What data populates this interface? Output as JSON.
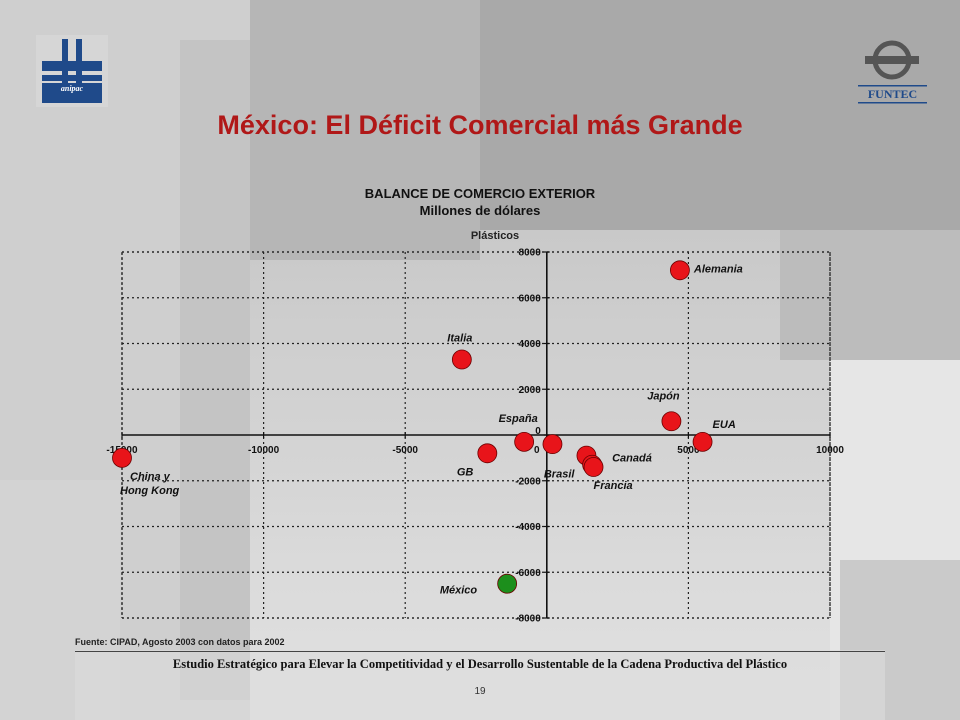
{
  "slide": {
    "title": "México: El Déficit Comercial más Grande",
    "source": "Fuente: CIPAD, Agosto 2003 con datos para 2002",
    "footer": "Estudio Estratégico para Elevar la Competitividad y el Desarrollo Sustentable de la Cadena Productiva del Plástico",
    "page_number": "19",
    "logos": {
      "left_text": "anipac",
      "right_text": "FUNTEC"
    }
  },
  "colors": {
    "title": "#b01818",
    "point_red": "#e8141a",
    "point_green": "#1c8f1c",
    "logo_blue": "#1f4a8a"
  },
  "chart_data": {
    "type": "scatter",
    "title": "BALANCE DE COMERCIO EXTERIOR",
    "subtitle": "Millones de dólares",
    "category": "Plásticos",
    "xlim": [
      -15000,
      10000
    ],
    "ylim": [
      -8000,
      8000
    ],
    "x_ticks": [
      "-15000",
      "-10000",
      "-5000",
      "0",
      "5000",
      "10000"
    ],
    "y_ticks": [
      "8000",
      "6000",
      "4000",
      "2000",
      "0",
      "-2000",
      "-4000",
      "-6000",
      "-8000"
    ],
    "grid": true,
    "points": [
      {
        "label": "Alemania",
        "x": 4700,
        "y": 7200,
        "color": "red"
      },
      {
        "label": "Italia",
        "x": -3000,
        "y": 3300,
        "color": "red"
      },
      {
        "label": "Japón",
        "x": 4400,
        "y": 600,
        "color": "red"
      },
      {
        "label": "EUA",
        "x": 5500,
        "y": -300,
        "color": "red"
      },
      {
        "label": "España",
        "x": -800,
        "y": -300,
        "color": "red"
      },
      {
        "label": "",
        "x": 200,
        "y": -400,
        "color": "red"
      },
      {
        "label": "GB",
        "x": -2100,
        "y": -800,
        "color": "red"
      },
      {
        "label": "Brasil",
        "x": 1400,
        "y": -900,
        "color": "red"
      },
      {
        "label": "Canadá",
        "x": 1600,
        "y": -1300,
        "color": "red"
      },
      {
        "label": "Francia",
        "x": 1650,
        "y": -1400,
        "color": "red"
      },
      {
        "label": "China y Hong Kong",
        "x": -15000,
        "y": -1000,
        "color": "red"
      },
      {
        "label": "México",
        "x": -1400,
        "y": -6500,
        "color": "green"
      }
    ]
  }
}
